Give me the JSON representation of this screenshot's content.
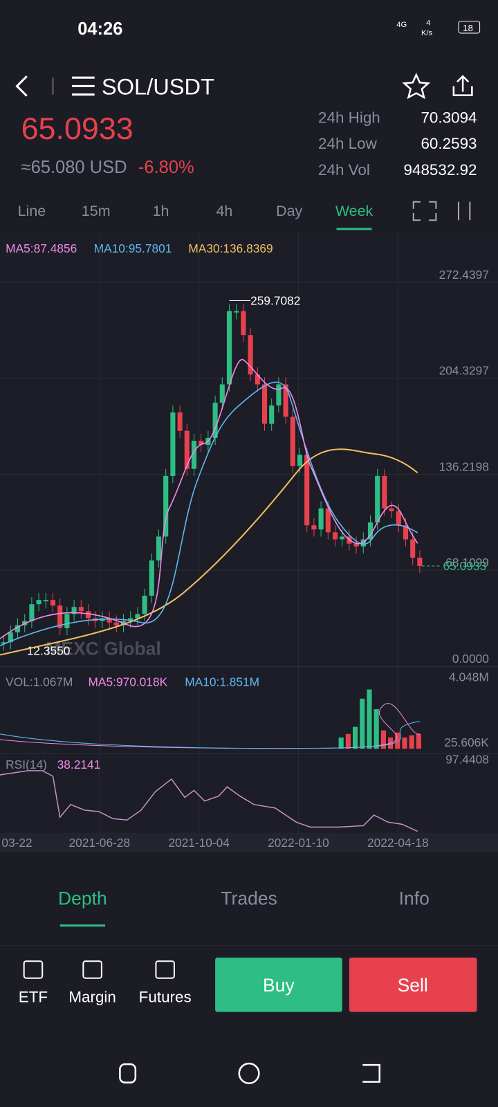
{
  "status_bar": {
    "time": "04:26",
    "network": "4G",
    "speed": "4",
    "speed_unit": "K/s",
    "battery": "18"
  },
  "header": {
    "pair": "SOL/USDT",
    "price": "65.0933",
    "usd_price": "≈65.080 USD",
    "change": "-6.80%",
    "stats": [
      {
        "label": "24h High",
        "value": "70.3094"
      },
      {
        "label": "24h Low",
        "value": "60.2593"
      },
      {
        "label": "24h Vol",
        "value": "948532.92"
      }
    ]
  },
  "intervals": [
    "Line",
    "15m",
    "1h",
    "4h",
    "Day",
    "Week"
  ],
  "active_interval": 5,
  "chart": {
    "type": "candlestick",
    "ma_labels": [
      "MA5:87.4856",
      "MA10:95.7801",
      "MA30:136.8369"
    ],
    "ylim": [
      0,
      272.4397
    ],
    "yticks": [
      {
        "value": 0,
        "label": "0.0000"
      },
      68.1099,
      136.2198,
      204.3297,
      272.4397
    ],
    "high_label": "259.7082",
    "low_label": "12.3550",
    "current_label": "65.0933",
    "watermark": "MEXC Global",
    "closes": [
      11,
      18,
      23,
      26,
      38,
      41,
      41,
      37,
      21,
      31,
      36,
      33,
      28,
      26,
      28,
      25,
      23,
      26,
      28,
      31,
      44,
      69,
      86,
      129,
      174,
      161,
      134,
      154,
      151,
      156,
      181,
      194,
      246,
      246,
      229,
      201,
      194,
      166,
      179,
      194,
      171,
      136,
      144,
      94,
      91,
      106,
      89,
      84,
      86,
      81,
      79,
      84,
      96,
      129,
      106,
      104,
      94,
      84,
      71,
      65.0933
    ],
    "up_color": "#2ebd85",
    "down_color": "#e8414e",
    "volume": {
      "labels": [
        "VOL:1.067M",
        "MA5:970.018K",
        "MA10:1.851M"
      ],
      "top": "4.048M",
      "bottom": "25.606K"
    },
    "rsi": {
      "label": "RSI(14)",
      "value": "38.2141",
      "top": "97.4408"
    },
    "xticks": [
      "03-22",
      "2021-06-28",
      "2021-10-04",
      "2022-01-10",
      "2022-04-18"
    ]
  },
  "tabs": [
    "Depth",
    "Trades",
    "Info"
  ],
  "active_tab": 0,
  "bottom": {
    "items": [
      "ETF",
      "Margin",
      "Futures"
    ],
    "buy": "Buy",
    "sell": "Sell"
  }
}
